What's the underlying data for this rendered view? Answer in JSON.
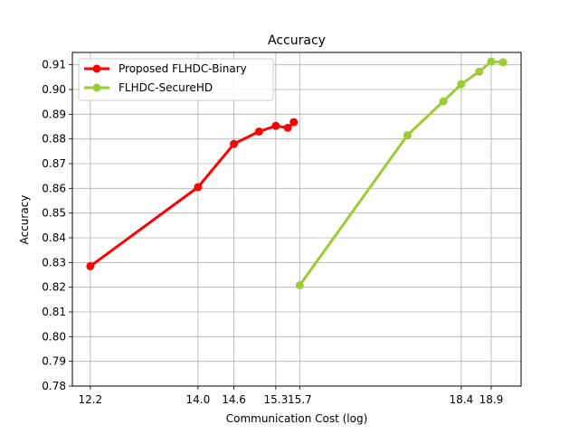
{
  "chart_data": {
    "type": "line",
    "title": "Accuracy",
    "xlabel": "Communication Cost (log)",
    "ylabel": "Accuracy",
    "xlim": [
      11.9,
      19.4
    ],
    "ylim": [
      0.78,
      0.915
    ],
    "x_ticks": [
      {
        "value": 12.2,
        "label": "12.2"
      },
      {
        "value": 14.0,
        "label": "14.0"
      },
      {
        "value": 14.6,
        "label": "14.6"
      },
      {
        "value": 15.3,
        "label": "15.3"
      },
      {
        "value": 15.7,
        "label": "15.7"
      },
      {
        "value": 18.4,
        "label": "18.4"
      },
      {
        "value": 18.9,
        "label": "18.9"
      }
    ],
    "y_ticks": [
      {
        "value": 0.78,
        "label": "0.78"
      },
      {
        "value": 0.79,
        "label": "0.79"
      },
      {
        "value": 0.8,
        "label": "0.80"
      },
      {
        "value": 0.81,
        "label": "0.81"
      },
      {
        "value": 0.82,
        "label": "0.82"
      },
      {
        "value": 0.83,
        "label": "0.83"
      },
      {
        "value": 0.84,
        "label": "0.84"
      },
      {
        "value": 0.85,
        "label": "0.85"
      },
      {
        "value": 0.86,
        "label": "0.86"
      },
      {
        "value": 0.87,
        "label": "0.87"
      },
      {
        "value": 0.88,
        "label": "0.88"
      },
      {
        "value": 0.89,
        "label": "0.89"
      },
      {
        "value": 0.9,
        "label": "0.90"
      },
      {
        "value": 0.91,
        "label": "0.91"
      }
    ],
    "grid": true,
    "legend_position": "top-left",
    "series": [
      {
        "name": "Proposed FLHDC-Binary",
        "color": "#ff0000",
        "x": [
          12.2,
          14.0,
          14.6,
          15.02,
          15.3,
          15.5,
          15.6
        ],
        "y": [
          0.8285,
          0.8605,
          0.878,
          0.883,
          0.8853,
          0.8845,
          0.8868
        ]
      },
      {
        "name": "FLHDC-SecureHD",
        "color": "#9acd32",
        "x": [
          15.7,
          17.5,
          18.1,
          18.4,
          18.7,
          18.9,
          19.1
        ],
        "y": [
          0.8208,
          0.8815,
          0.8952,
          0.9022,
          0.9072,
          0.9113,
          0.911
        ]
      }
    ]
  }
}
